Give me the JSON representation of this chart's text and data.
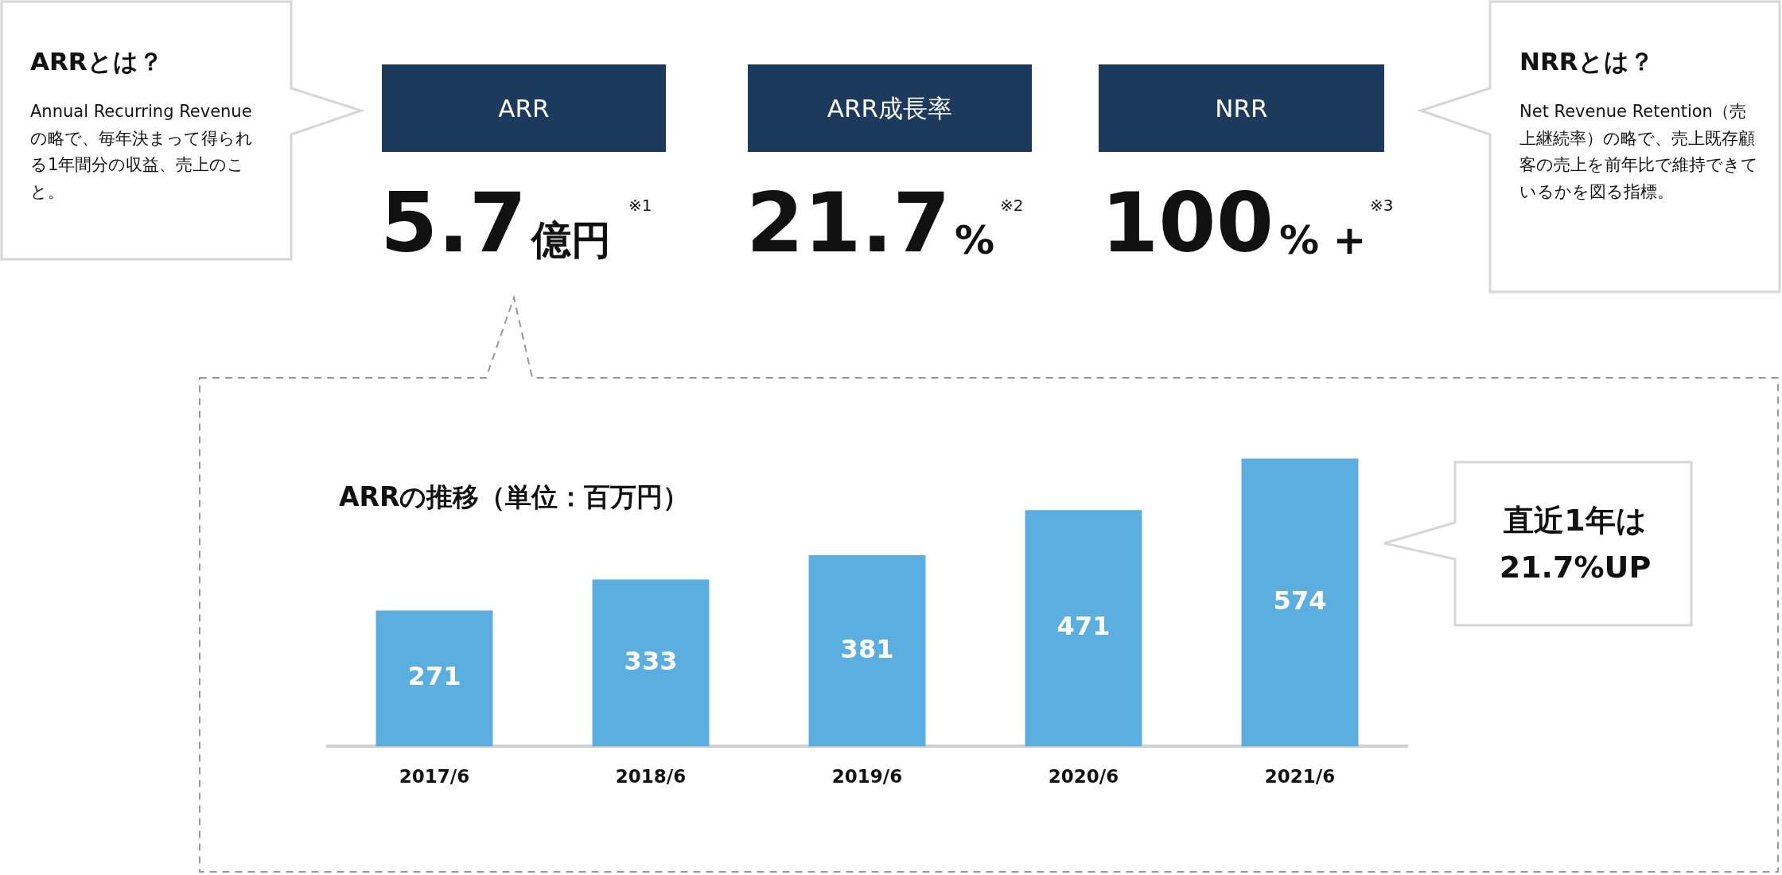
{
  "chart_data": {
    "type": "bar",
    "title": "ARRの推移（単位：百万円）",
    "categories": [
      "2017/6",
      "2018/6",
      "2019/6",
      "2020/6",
      "2021/6"
    ],
    "values": [
      271,
      333,
      381,
      471,
      574
    ],
    "color": "#5aafe0",
    "data_labels": true,
    "grid": false,
    "legend": false,
    "annotations": [
      "ARRとは？",
      "Annual Recurring Revenueの略で、毎年決まって得られる1年間分の収益、売上のこと。",
      "ARR",
      "5.7",
      "億円",
      "※1",
      "ARR成長率",
      "21.7",
      "%",
      "※2",
      "NRR",
      "100",
      "% +",
      "※3",
      "NRRとは？",
      "Net Revenue Retention（売上継続率）の略で、売上既存顧客の売上を前年比で維持できているかを図る指標。",
      "直近1年は21.7%UP"
    ]
  }
}
